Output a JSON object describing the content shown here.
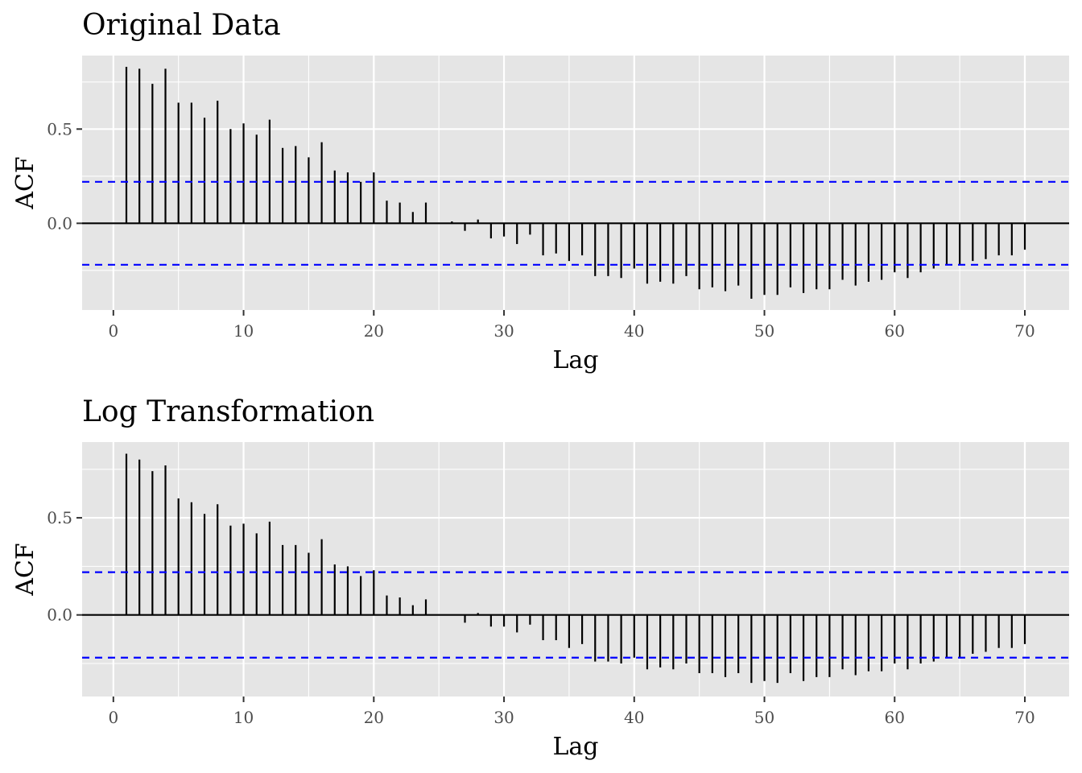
{
  "chart_data": [
    {
      "type": "bar",
      "title": "Original Data",
      "xlabel": "Lag",
      "ylabel": "ACF",
      "xlim": [
        -2.4,
        73.4
      ],
      "ylim": [
        -0.46,
        0.89
      ],
      "x_ticks": [
        0,
        10,
        20,
        30,
        40,
        50,
        60,
        70
      ],
      "x_tick_labels": [
        "0",
        "10",
        "20",
        "30",
        "40",
        "50",
        "60",
        "70"
      ],
      "y_ticks": [
        0.0,
        0.5
      ],
      "y_tick_labels": [
        "0.0",
        "0.5"
      ],
      "confidence_bound": 0.22,
      "grid": true,
      "lags": [
        1,
        2,
        3,
        4,
        5,
        6,
        7,
        8,
        9,
        10,
        11,
        12,
        13,
        14,
        15,
        16,
        17,
        18,
        19,
        20,
        21,
        22,
        23,
        24,
        25,
        26,
        27,
        28,
        29,
        30,
        31,
        32,
        33,
        34,
        35,
        36,
        37,
        38,
        39,
        40,
        41,
        42,
        43,
        44,
        45,
        46,
        47,
        48,
        49,
        50,
        51,
        52,
        53,
        54,
        55,
        56,
        57,
        58,
        59,
        60,
        61,
        62,
        63,
        64,
        65,
        66,
        67,
        68,
        69,
        70
      ],
      "values": [
        0.83,
        0.82,
        0.74,
        0.82,
        0.64,
        0.64,
        0.56,
        0.65,
        0.5,
        0.53,
        0.47,
        0.55,
        0.4,
        0.41,
        0.35,
        0.43,
        0.28,
        0.27,
        0.22,
        0.27,
        0.12,
        0.11,
        0.06,
        0.11,
        0.0,
        0.01,
        -0.04,
        0.02,
        -0.08,
        -0.07,
        -0.11,
        -0.06,
        -0.17,
        -0.16,
        -0.2,
        -0.17,
        -0.28,
        -0.28,
        -0.29,
        -0.24,
        -0.32,
        -0.31,
        -0.32,
        -0.28,
        -0.35,
        -0.34,
        -0.36,
        -0.33,
        -0.4,
        -0.38,
        -0.38,
        -0.34,
        -0.37,
        -0.35,
        -0.35,
        -0.3,
        -0.33,
        -0.31,
        -0.3,
        -0.26,
        -0.29,
        -0.26,
        -0.24,
        -0.22,
        -0.22,
        -0.2,
        -0.19,
        -0.17,
        -0.17,
        -0.14
      ]
    },
    {
      "type": "bar",
      "title": "Log Transformation",
      "xlabel": "Lag",
      "ylabel": "ACF",
      "xlim": [
        -2.4,
        73.4
      ],
      "ylim": [
        -0.42,
        0.89
      ],
      "x_ticks": [
        0,
        10,
        20,
        30,
        40,
        50,
        60,
        70
      ],
      "x_tick_labels": [
        "0",
        "10",
        "20",
        "30",
        "40",
        "50",
        "60",
        "70"
      ],
      "y_ticks": [
        0.0,
        0.5
      ],
      "y_tick_labels": [
        "0.0",
        "0.5"
      ],
      "confidence_bound": 0.22,
      "grid": true,
      "lags": [
        1,
        2,
        3,
        4,
        5,
        6,
        7,
        8,
        9,
        10,
        11,
        12,
        13,
        14,
        15,
        16,
        17,
        18,
        19,
        20,
        21,
        22,
        23,
        24,
        25,
        26,
        27,
        28,
        29,
        30,
        31,
        32,
        33,
        34,
        35,
        36,
        37,
        38,
        39,
        40,
        41,
        42,
        43,
        44,
        45,
        46,
        47,
        48,
        49,
        50,
        51,
        52,
        53,
        54,
        55,
        56,
        57,
        58,
        59,
        60,
        61,
        62,
        63,
        64,
        65,
        66,
        67,
        68,
        69,
        70
      ],
      "values": [
        0.83,
        0.8,
        0.74,
        0.77,
        0.6,
        0.58,
        0.52,
        0.57,
        0.46,
        0.47,
        0.42,
        0.48,
        0.36,
        0.36,
        0.32,
        0.39,
        0.26,
        0.25,
        0.2,
        0.23,
        0.1,
        0.09,
        0.05,
        0.08,
        0.0,
        0.0,
        -0.04,
        0.01,
        -0.06,
        -0.06,
        -0.09,
        -0.05,
        -0.13,
        -0.13,
        -0.17,
        -0.15,
        -0.24,
        -0.24,
        -0.25,
        -0.22,
        -0.28,
        -0.27,
        -0.28,
        -0.25,
        -0.3,
        -0.3,
        -0.32,
        -0.3,
        -0.35,
        -0.34,
        -0.35,
        -0.3,
        -0.34,
        -0.32,
        -0.32,
        -0.28,
        -0.31,
        -0.29,
        -0.29,
        -0.25,
        -0.28,
        -0.25,
        -0.24,
        -0.22,
        -0.22,
        -0.2,
        -0.19,
        -0.17,
        -0.17,
        -0.15
      ]
    }
  ],
  "colors": {
    "panel_background": "#e5e5e5",
    "grid": "#ffffff",
    "bar": "#000000",
    "zero_line": "#000000",
    "confidence": "#0000ff",
    "tick_text": "#4d4d4d",
    "tick_mark": "#333333"
  }
}
